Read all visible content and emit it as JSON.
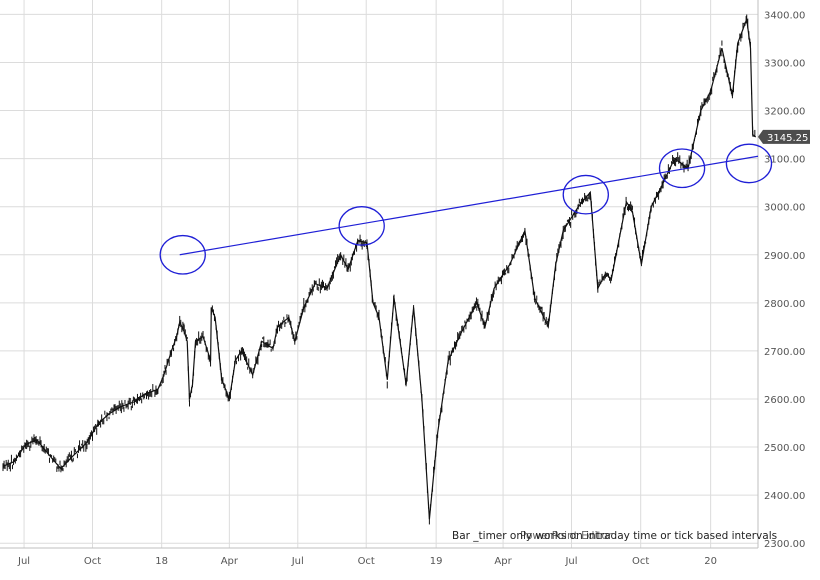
{
  "chart_data": {
    "type": "line",
    "y_axis": {
      "side": "right",
      "ylim": [
        2290,
        3430
      ],
      "ticks": [
        "2300.00",
        "2400.00",
        "2500.00",
        "2600.00",
        "2700.00",
        "2800.00",
        "2900.00",
        "3000.00",
        "3100.00",
        "3200.00",
        "3300.00",
        "3400.00"
      ],
      "tick_values": [
        2300,
        2400,
        2500,
        2600,
        2700,
        2800,
        2900,
        3000,
        3100,
        3200,
        3300,
        3400
      ]
    },
    "x_axis": {
      "xlim": [
        "2017-06-01",
        "2020-03-05"
      ],
      "tick_labels": [
        "Jul",
        "Oct",
        "18",
        "Apr",
        "Jul",
        "Oct",
        "19",
        "Apr",
        "Jul",
        "Oct",
        "20"
      ],
      "tick_dates": [
        "2017-07-03",
        "2017-10-02",
        "2018-01-02",
        "2018-04-02",
        "2018-07-02",
        "2018-10-01",
        "2019-01-02",
        "2019-04-01",
        "2019-07-01",
        "2019-10-01",
        "2020-01-02"
      ]
    },
    "grid": true,
    "last_price_label": "3145.25",
    "last_price_value": 3145.25,
    "series": [
      {
        "points": [
          [
            "2017-06-05",
            2460
          ],
          [
            "2017-06-20",
            2470
          ],
          [
            "2017-07-05",
            2505
          ],
          [
            "2017-07-20",
            2515
          ],
          [
            "2017-08-10",
            2475
          ],
          [
            "2017-08-21",
            2455
          ],
          [
            "2017-09-05",
            2480
          ],
          [
            "2017-09-25",
            2510
          ],
          [
            "2017-10-10",
            2550
          ],
          [
            "2017-10-25",
            2570
          ],
          [
            "2017-11-10",
            2585
          ],
          [
            "2017-11-28",
            2595
          ],
          [
            "2017-12-10",
            2610
          ],
          [
            "2017-12-28",
            2620
          ],
          [
            "2018-01-05",
            2650
          ],
          [
            "2018-01-15",
            2700
          ],
          [
            "2018-01-22",
            2730
          ],
          [
            "2018-01-26",
            2760
          ],
          [
            "2018-02-01",
            2740
          ],
          [
            "2018-02-05",
            2720
          ],
          [
            "2018-02-08",
            2600
          ],
          [
            "2018-02-12",
            2630
          ],
          [
            "2018-02-16",
            2720
          ],
          [
            "2018-02-26",
            2730
          ],
          [
            "2018-03-08",
            2680
          ],
          [
            "2018-03-09",
            2790
          ],
          [
            "2018-03-14",
            2770
          ],
          [
            "2018-03-23",
            2640
          ],
          [
            "2018-04-02",
            2600
          ],
          [
            "2018-04-10",
            2680
          ],
          [
            "2018-04-18",
            2700
          ],
          [
            "2018-05-03",
            2650
          ],
          [
            "2018-05-15",
            2720
          ],
          [
            "2018-05-30",
            2705
          ],
          [
            "2018-06-05",
            2750
          ],
          [
            "2018-06-20",
            2770
          ],
          [
            "2018-06-28",
            2720
          ],
          [
            "2018-07-10",
            2790
          ],
          [
            "2018-07-25",
            2840
          ],
          [
            "2018-08-10",
            2830
          ],
          [
            "2018-08-28",
            2900
          ],
          [
            "2018-09-07",
            2870
          ],
          [
            "2018-09-20",
            2930
          ],
          [
            "2018-10-02",
            2925
          ],
          [
            "2018-10-10",
            2800
          ],
          [
            "2018-10-18",
            2770
          ],
          [
            "2018-10-29",
            2640
          ],
          [
            "2018-11-07",
            2810
          ],
          [
            "2018-11-23",
            2630
          ],
          [
            "2018-12-03",
            2790
          ],
          [
            "2018-12-14",
            2600
          ],
          [
            "2018-12-20",
            2450
          ],
          [
            "2018-12-24",
            2350
          ],
          [
            "2019-01-04",
            2530
          ],
          [
            "2019-01-18",
            2680
          ],
          [
            "2019-02-05",
            2740
          ],
          [
            "2019-02-25",
            2800
          ],
          [
            "2019-03-08",
            2750
          ],
          [
            "2019-03-20",
            2830
          ],
          [
            "2019-04-10",
            2880
          ],
          [
            "2019-04-30",
            2950
          ],
          [
            "2019-05-13",
            2810
          ],
          [
            "2019-05-31",
            2750
          ],
          [
            "2019-06-10",
            2880
          ],
          [
            "2019-06-20",
            2950
          ],
          [
            "2019-07-10",
            3000
          ],
          [
            "2019-07-26",
            3030
          ],
          [
            "2019-08-05",
            2830
          ],
          [
            "2019-08-15",
            2860
          ],
          [
            "2019-08-23",
            2850
          ],
          [
            "2019-09-12",
            3010
          ],
          [
            "2019-09-20",
            2990
          ],
          [
            "2019-10-02",
            2880
          ],
          [
            "2019-10-15",
            3000
          ],
          [
            "2019-10-28",
            3040
          ],
          [
            "2019-11-15",
            3100
          ],
          [
            "2019-12-03",
            3080
          ],
          [
            "2019-12-20",
            3200
          ],
          [
            "2020-01-02",
            3240
          ],
          [
            "2020-01-17",
            3330
          ],
          [
            "2020-01-31",
            3230
          ],
          [
            "2020-02-07",
            3340
          ],
          [
            "2020-02-19",
            3390
          ],
          [
            "2020-02-24",
            3330
          ],
          [
            "2020-02-27",
            3150
          ],
          [
            "2020-03-02",
            3145
          ]
        ]
      }
    ],
    "trendline": {
      "start": [
        "2018-01-26",
        2900
      ],
      "end": [
        "2020-03-05",
        3105
      ]
    },
    "circles": [
      {
        "center": [
          "2018-01-30",
          2900
        ],
        "rx_days": 30,
        "ry_value": 40
      },
      {
        "center": [
          "2018-09-25",
          2960
        ],
        "rx_days": 30,
        "ry_value": 40
      },
      {
        "center": [
          "2019-07-20",
          3025
        ],
        "rx_days": 30,
        "ry_value": 40
      },
      {
        "center": [
          "2019-11-25",
          3080
        ],
        "rx_days": 30,
        "ry_value": 40
      },
      {
        "center": [
          "2020-02-22",
          3090
        ],
        "rx_days": 30,
        "ry_value": 40
      }
    ],
    "annotation": "Bar _timer only works on intraday time or tick based intervals",
    "annotation_overlay": "PowerPoint Editor"
  }
}
